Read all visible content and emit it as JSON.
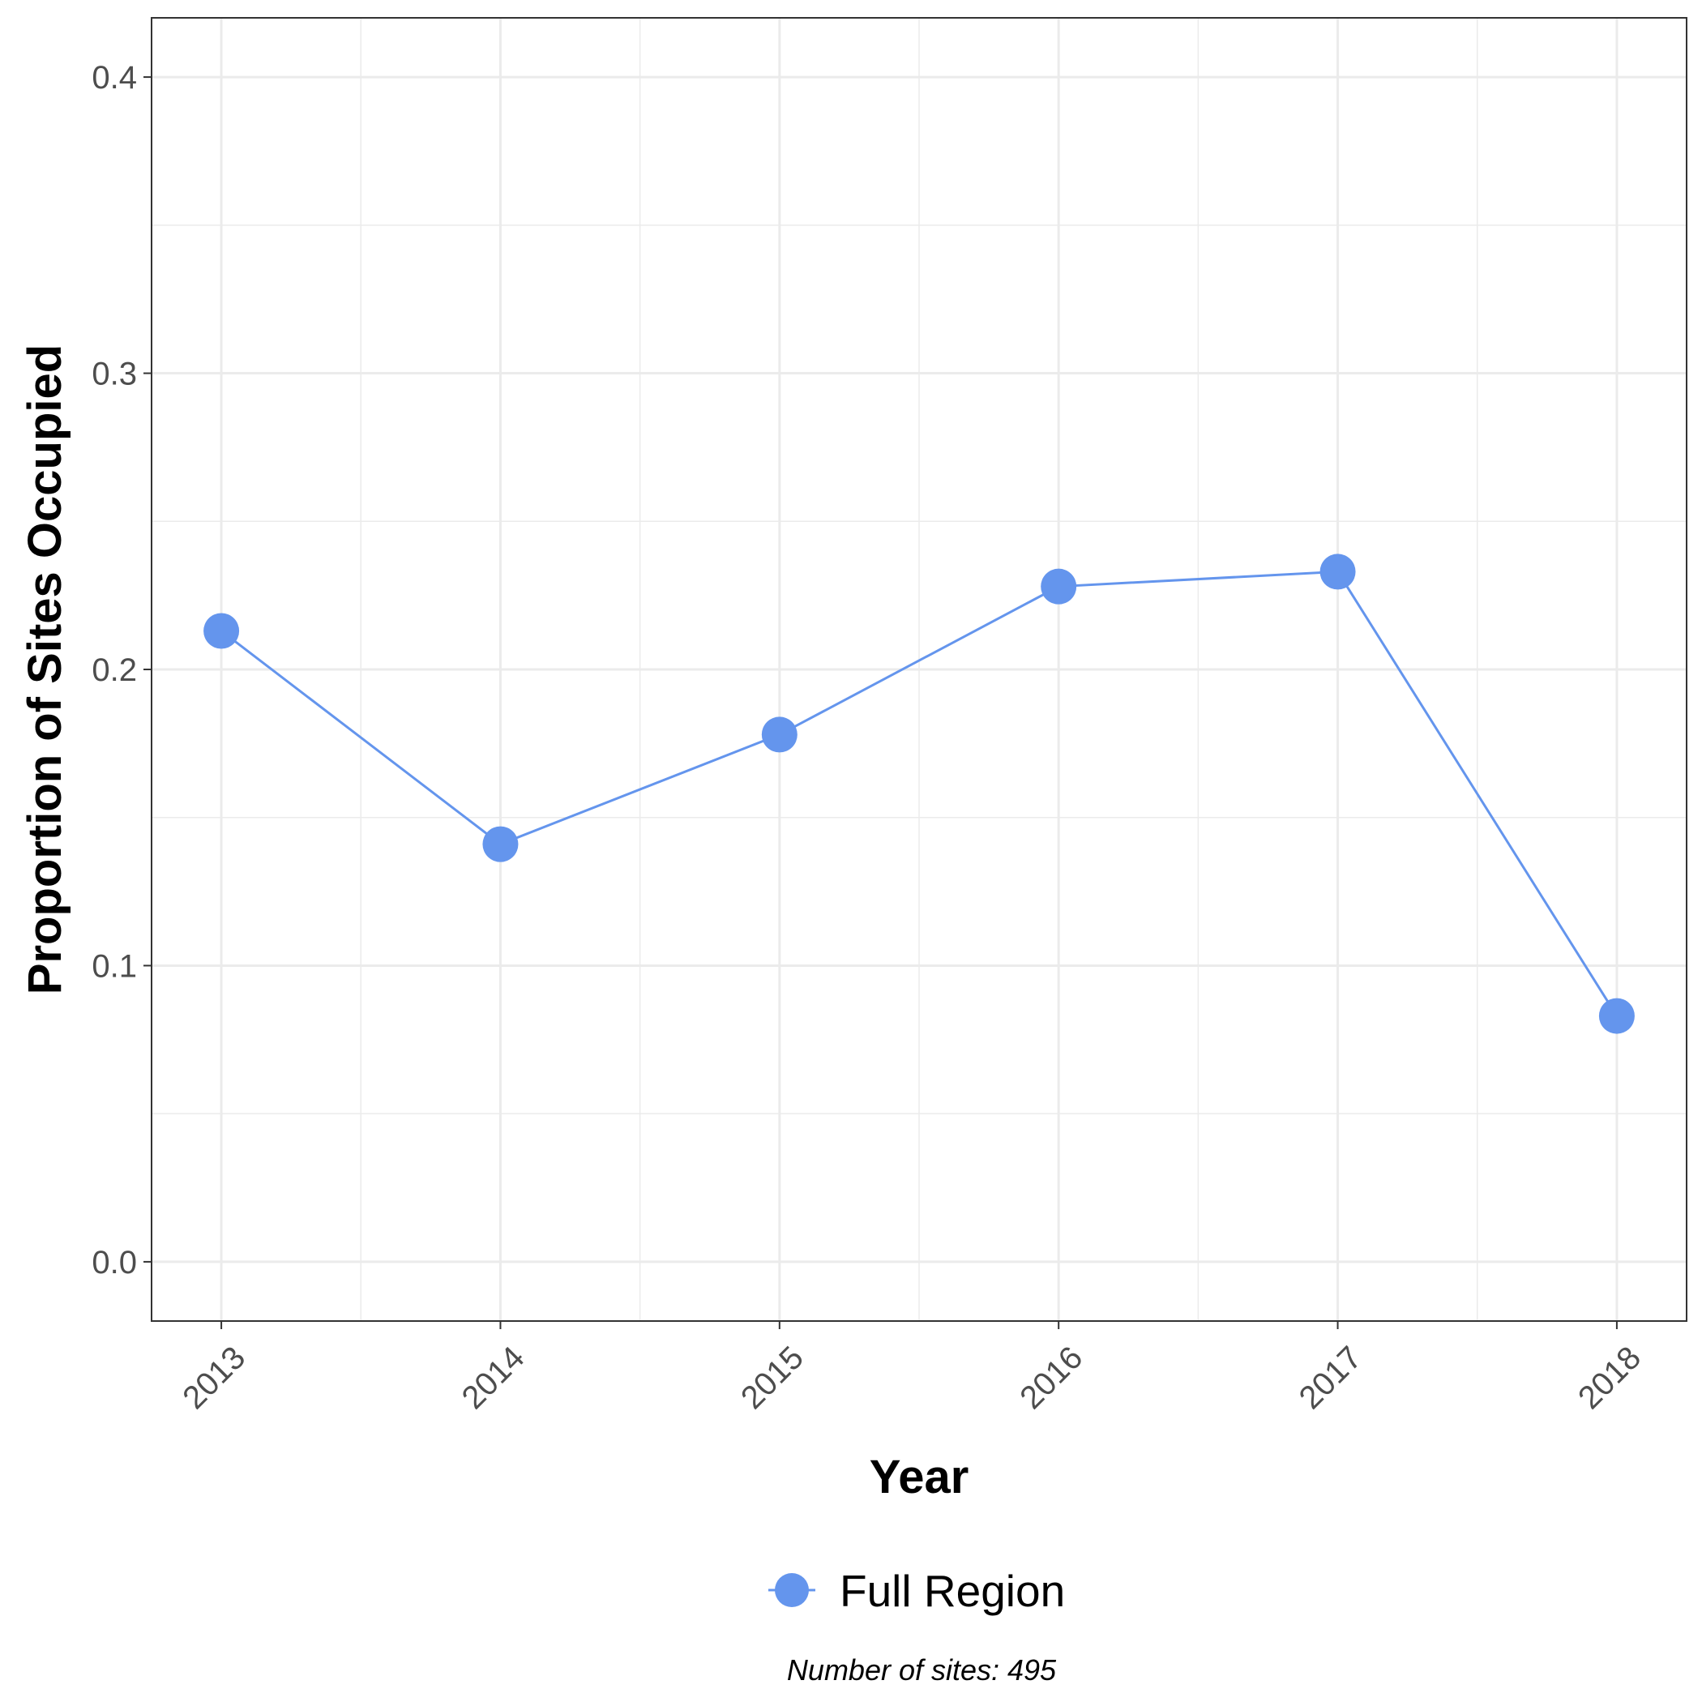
{
  "chart_data": {
    "type": "line",
    "x": [
      2013,
      2014,
      2015,
      2016,
      2017,
      2018
    ],
    "categories": [
      "2013",
      "2014",
      "2015",
      "2016",
      "2017",
      "2018"
    ],
    "series": [
      {
        "name": "Full Region",
        "values": [
          0.213,
          0.141,
          0.178,
          0.228,
          0.233,
          0.083
        ],
        "color": "#6495ed"
      }
    ],
    "xlabel": "Year",
    "ylabel": "Proportion of Sites Occupied",
    "ylim": [
      -0.02,
      0.42
    ],
    "yticks": [
      0.0,
      0.1,
      0.2,
      0.3,
      0.4
    ],
    "ytick_labels": [
      "0.0",
      "0.1",
      "0.2",
      "0.3",
      "0.4"
    ],
    "xlim": [
      2012.75,
      2018.25
    ],
    "grid": true,
    "legend_position": "bottom",
    "caption": "Number of sites: 495"
  }
}
